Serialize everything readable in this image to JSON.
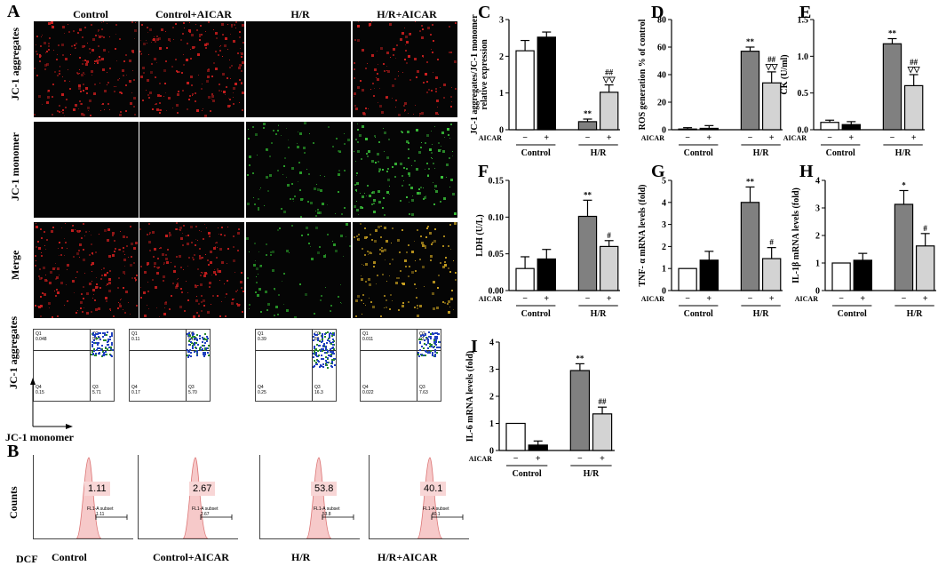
{
  "panel_letters": {
    "A": "A",
    "B": "B",
    "C": "C",
    "D": "D",
    "E": "E",
    "F": "F",
    "G": "G",
    "H": "H",
    "I": "I"
  },
  "groups": [
    "Control",
    "Control+AICAR",
    "H/R",
    "H/R+AICAR"
  ],
  "rows": [
    "JC-1 aggregates",
    "JC-1 monomer",
    "Merge"
  ],
  "flow": {
    "y_label": "JC-1 aggregates",
    "x_label": "JC-1 monomer",
    "quadrants": [
      {
        "q1": "Q1",
        "q1v": "0.048",
        "q2": "Q2",
        "q2v": "94.1",
        "q3": "Q3",
        "q3v": "5.71",
        "q4": "Q4",
        "q4v": "0.15"
      },
      {
        "q1": "Q1",
        "q1v": "0.11",
        "q2": "Q2",
        "q2v": "94.0",
        "q3": "Q3",
        "q3v": "5.70",
        "q4": "Q4",
        "q4v": "0.17"
      },
      {
        "q1": "Q1",
        "q1v": "0.39",
        "q2": "Q2",
        "q2v": "83.1",
        "q3": "Q3",
        "q3v": "16.3",
        "q4": "Q4",
        "q4v": "0.25"
      },
      {
        "q1": "Q1",
        "q1v": "0.011",
        "q2": "Q2",
        "q2v": "92.3",
        "q3": "Q3",
        "q3v": "7.63",
        "q4": "Q4",
        "q4v": "0.022"
      }
    ]
  },
  "dcf": {
    "y_label": "Counts",
    "x_label": "DCF",
    "subset_label": "FL1-A subset",
    "values": [
      "1.11",
      "2.67",
      "53.8",
      "40.1"
    ],
    "bottom_labels": [
      "Control",
      "Control+AICAR",
      "H/R",
      "H/R+AICAR"
    ]
  },
  "bar_common": {
    "aicar_label": "AICAR",
    "signs": [
      "−",
      "+",
      "−",
      "+"
    ],
    "group_labels": [
      "Control",
      "H/R"
    ],
    "colors": [
      "#ffffff",
      "#000000",
      "#808080",
      "#d3d3d3"
    ]
  },
  "chart_data": [
    {
      "id": "C",
      "type": "bar",
      "ylabel": "JC-1 aggregates/JC-1 monomer relative expression",
      "ylim": [
        0,
        3
      ],
      "yticks": [
        0,
        1,
        2,
        3
      ],
      "values": [
        2.15,
        2.52,
        0.22,
        1.02
      ],
      "errors": [
        0.28,
        0.14,
        0.07,
        0.2
      ],
      "annotations": [
        "",
        "",
        "**",
        "##\n▽▽"
      ]
    },
    {
      "id": "D",
      "type": "bar",
      "ylabel": "ROS generation % of control",
      "ylim": [
        0,
        80
      ],
      "yticks": [
        0,
        20,
        40,
        60,
        80
      ],
      "values": [
        0.5,
        1,
        57,
        34
      ],
      "errors": [
        1,
        2,
        3,
        8
      ],
      "annotations": [
        "",
        "",
        "**",
        "##\n▽▽"
      ]
    },
    {
      "id": "E",
      "type": "bar",
      "ylabel": "CK (U/ml)",
      "ylim": [
        0,
        1.5
      ],
      "yticks": [
        0.0,
        0.5,
        1.0,
        1.5
      ],
      "values": [
        0.1,
        0.07,
        1.17,
        0.6
      ],
      "errors": [
        0.03,
        0.04,
        0.07,
        0.15
      ],
      "annotations": [
        "",
        "",
        "**",
        "##\n▽▽"
      ]
    },
    {
      "id": "F",
      "type": "bar",
      "ylabel": "LDH (U/L)",
      "ylim": [
        0,
        0.15
      ],
      "yticks": [
        0.0,
        0.05,
        0.1,
        0.15
      ],
      "values": [
        0.03,
        0.043,
        0.101,
        0.06
      ],
      "errors": [
        0.016,
        0.013,
        0.022,
        0.008
      ],
      "annotations": [
        "",
        "",
        "**",
        "#"
      ]
    },
    {
      "id": "G",
      "type": "bar",
      "ylabel": "TNF- α mRNA levels (fold)",
      "ylim": [
        0,
        5
      ],
      "yticks": [
        0,
        1,
        2,
        3,
        4,
        5
      ],
      "values": [
        1.0,
        1.38,
        4.0,
        1.45
      ],
      "errors": [
        0,
        0.4,
        0.7,
        0.5
      ],
      "annotations": [
        "",
        "",
        "**",
        "#"
      ]
    },
    {
      "id": "H",
      "type": "bar",
      "ylabel": "IL-1β mRNA levels (fold)",
      "ylim": [
        0,
        4
      ],
      "yticks": [
        0,
        1,
        2,
        3,
        4
      ],
      "values": [
        1.0,
        1.1,
        3.13,
        1.62
      ],
      "errors": [
        0,
        0.25,
        0.5,
        0.45
      ],
      "annotations": [
        "",
        "",
        "*",
        "#"
      ]
    },
    {
      "id": "I",
      "type": "bar",
      "ylabel": "IL-6 mRNA levels (fold)",
      "ylim": [
        0,
        4
      ],
      "yticks": [
        0,
        1,
        2,
        3,
        4
      ],
      "values": [
        1.0,
        0.2,
        2.95,
        1.35
      ],
      "errors": [
        0,
        0.15,
        0.25,
        0.25
      ],
      "annotations": [
        "",
        "",
        "**",
        "##"
      ]
    }
  ]
}
